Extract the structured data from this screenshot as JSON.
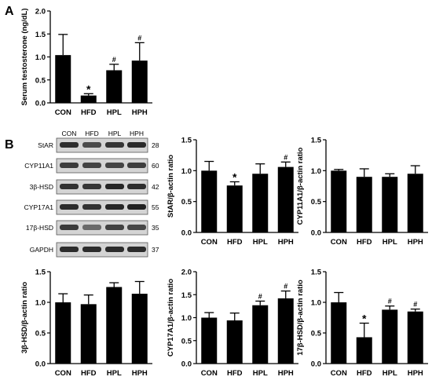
{
  "panel_labels": {
    "a": "A",
    "b": "B"
  },
  "colors": {
    "bar": "#000000",
    "axis": "#000000",
    "background": "#ffffff"
  },
  "blot": {
    "lane_labels": [
      "CON",
      "HFD",
      "HPL",
      "HPH"
    ],
    "rows": [
      {
        "protein": "StAR",
        "kda": "28"
      },
      {
        "protein": "CYP11A1",
        "kda": "60"
      },
      {
        "protein": "3β-HSD",
        "kda": "42"
      },
      {
        "protein": "CYP17A1",
        "kda": "55"
      },
      {
        "protein": "17β-HSD",
        "kda": "35"
      },
      {
        "protein": "GAPDH",
        "kda": "37"
      }
    ]
  },
  "chart_data": [
    {
      "id": "testosterone",
      "type": "bar",
      "categories": [
        "CON",
        "HFD",
        "HPL",
        "HPH"
      ],
      "values": [
        1.04,
        0.16,
        0.71,
        0.92
      ],
      "errors": [
        0.45,
        0.04,
        0.13,
        0.39
      ],
      "marks": [
        "",
        "*",
        "#",
        "#"
      ],
      "title": "",
      "xlabel": "",
      "ylabel": "Serum testosterone (ng/dL)",
      "ylim": [
        0,
        2.0
      ],
      "yticks": [
        "0.0",
        "0.5",
        "1.0",
        "1.5",
        "2.0"
      ],
      "grid": false
    },
    {
      "id": "star",
      "type": "bar",
      "categories": [
        "CON",
        "HFD",
        "HPL",
        "HPH"
      ],
      "values": [
        1.0,
        0.76,
        0.95,
        1.06
      ],
      "errors": [
        0.15,
        0.06,
        0.16,
        0.08
      ],
      "marks": [
        "",
        "*",
        "",
        "#"
      ],
      "title": "",
      "xlabel": "",
      "ylabel": "StAR/β-actin ratio",
      "ylim": [
        0,
        1.5
      ],
      "yticks": [
        "0.0",
        "0.5",
        "1.0",
        "1.5"
      ],
      "grid": false
    },
    {
      "id": "cyp11a1",
      "type": "bar",
      "categories": [
        "CON",
        "HFD",
        "HPL",
        "HPH"
      ],
      "values": [
        1.0,
        0.9,
        0.9,
        0.95
      ],
      "errors": [
        0.02,
        0.13,
        0.05,
        0.13
      ],
      "marks": [
        "",
        "",
        "",
        ""
      ],
      "title": "",
      "xlabel": "",
      "ylabel": "CYP11A1/β-actin ratio",
      "ylim": [
        0,
        1.5
      ],
      "yticks": [
        "0.0",
        "0.5",
        "1.0",
        "1.5"
      ],
      "grid": false
    },
    {
      "id": "hsd3b",
      "type": "bar",
      "categories": [
        "CON",
        "HFD",
        "HPL",
        "HPH"
      ],
      "values": [
        1.0,
        0.97,
        1.25,
        1.14
      ],
      "errors": [
        0.14,
        0.15,
        0.07,
        0.2
      ],
      "marks": [
        "",
        "",
        "",
        ""
      ],
      "title": "",
      "xlabel": "",
      "ylabel": "3β-HSD/β-actin ratio",
      "ylim": [
        0,
        1.5
      ],
      "yticks": [
        "0.0",
        "0.5",
        "1.0",
        "1.5"
      ],
      "grid": false
    },
    {
      "id": "cyp17a1",
      "type": "bar",
      "categories": [
        "CON",
        "HFD",
        "HPL",
        "HPH"
      ],
      "values": [
        1.0,
        0.94,
        1.27,
        1.42
      ],
      "errors": [
        0.11,
        0.16,
        0.09,
        0.16
      ],
      "marks": [
        "",
        "",
        "#",
        "#"
      ],
      "title": "",
      "xlabel": "",
      "ylabel": "CYP17A1/β-actin ratio",
      "ylim": [
        0,
        2.0
      ],
      "yticks": [
        "0.0",
        "0.5",
        "1.0",
        "1.5",
        "2.0"
      ],
      "grid": false
    },
    {
      "id": "hsd17b",
      "type": "bar",
      "categories": [
        "CON",
        "HFD",
        "HPL",
        "HPH"
      ],
      "values": [
        1.0,
        0.43,
        0.88,
        0.85
      ],
      "errors": [
        0.16,
        0.23,
        0.06,
        0.04
      ],
      "marks": [
        "",
        "*",
        "#",
        "#"
      ],
      "title": "",
      "xlabel": "",
      "ylabel": "17β-HSD/β-actin ratio",
      "ylim": [
        0,
        1.5
      ],
      "yticks": [
        "0.0",
        "0.5",
        "1.0",
        "1.5"
      ],
      "grid": false
    }
  ]
}
